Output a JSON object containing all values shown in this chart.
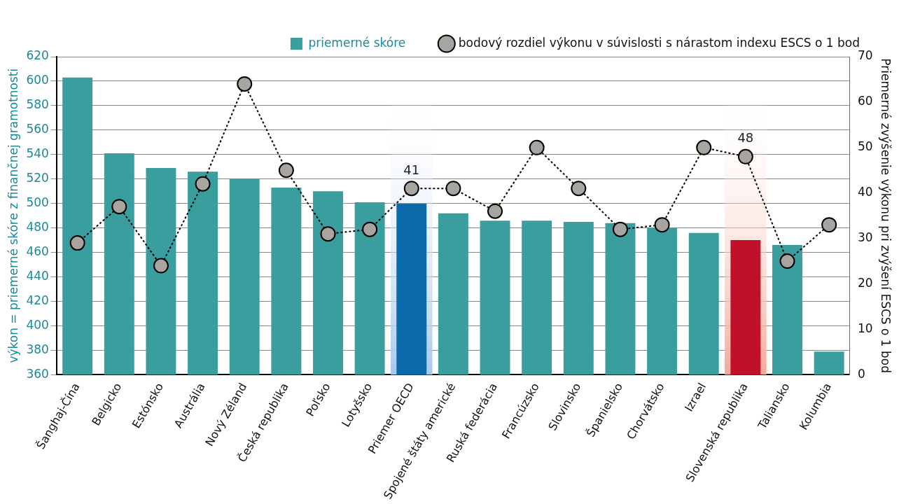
{
  "chart_data": {
    "type": "bar",
    "categories": [
      "Šanghaj-Čína",
      "Belgicko",
      "Estónsko",
      "Austrália",
      "Nový Zéland",
      "Česká republika",
      "Poľsko",
      "Lotyšsko",
      "Priemer OECD",
      "Spojené štáty americké",
      "Ruská federácia",
      "Francúzsko",
      "Slovinsko",
      "Španielsko",
      "Chorvátsko",
      "Izrael",
      "Slovenská republika",
      "Taliansko",
      "Kolumbia"
    ],
    "series": [
      {
        "name": "priemerné skóre",
        "color": "#3a9e9e",
        "colors": [
          "#3a9e9e",
          "#3a9e9e",
          "#3a9e9e",
          "#3a9e9e",
          "#3a9e9e",
          "#3a9e9e",
          "#3a9e9e",
          "#3a9e9e",
          "#0a6aaa",
          "#3a9e9e",
          "#3a9e9e",
          "#3a9e9e",
          "#3a9e9e",
          "#3a9e9e",
          "#3a9e9e",
          "#3a9e9e",
          "#c0102a",
          "#3a9e9e",
          "#3a9e9e"
        ],
        "values": [
          603,
          541,
          529,
          526,
          520,
          513,
          510,
          501,
          500,
          492,
          486,
          486,
          485,
          484,
          480,
          476,
          470,
          466,
          379
        ]
      },
      {
        "name": "bodový rozdiel výkonu v súvislosti s nárastom indexu ESCS o 1 bod",
        "type": "line",
        "axis": "y2",
        "color": "#a8a4a0",
        "line_style": "dotted",
        "marker": "circle",
        "values": [
          29,
          37,
          24,
          42,
          64,
          45,
          31,
          32,
          41,
          41,
          36,
          50,
          41,
          32,
          33,
          50,
          48,
          25,
          33
        ],
        "value_labels": [
          null,
          null,
          null,
          null,
          null,
          null,
          null,
          null,
          "41",
          null,
          null,
          null,
          null,
          null,
          null,
          null,
          "48",
          null,
          null
        ]
      }
    ],
    "ylabel": "výkon = priemerné skóre z finančnej gramotnosti",
    "y2label": "Priemerné zvýšenie výkonu pri zvýšení ESCS o 1 bod",
    "ylim": [
      360,
      620
    ],
    "yticks": [
      360,
      380,
      400,
      420,
      440,
      460,
      480,
      500,
      520,
      540,
      560,
      580,
      600,
      620
    ],
    "y2lim": [
      0,
      70
    ],
    "y2ticks": [
      0,
      10,
      20,
      30,
      40,
      50,
      60,
      70
    ],
    "bands": [
      {
        "axis": "x",
        "from": "Priemer OECD",
        "to": "Priemer OECD",
        "color": "#a9c8ec"
      },
      {
        "axis": "x",
        "from": "Slovenská republika",
        "to": "Slovenská republika",
        "color": "#f6a898"
      }
    ],
    "grid": "y",
    "legend": "top right"
  }
}
